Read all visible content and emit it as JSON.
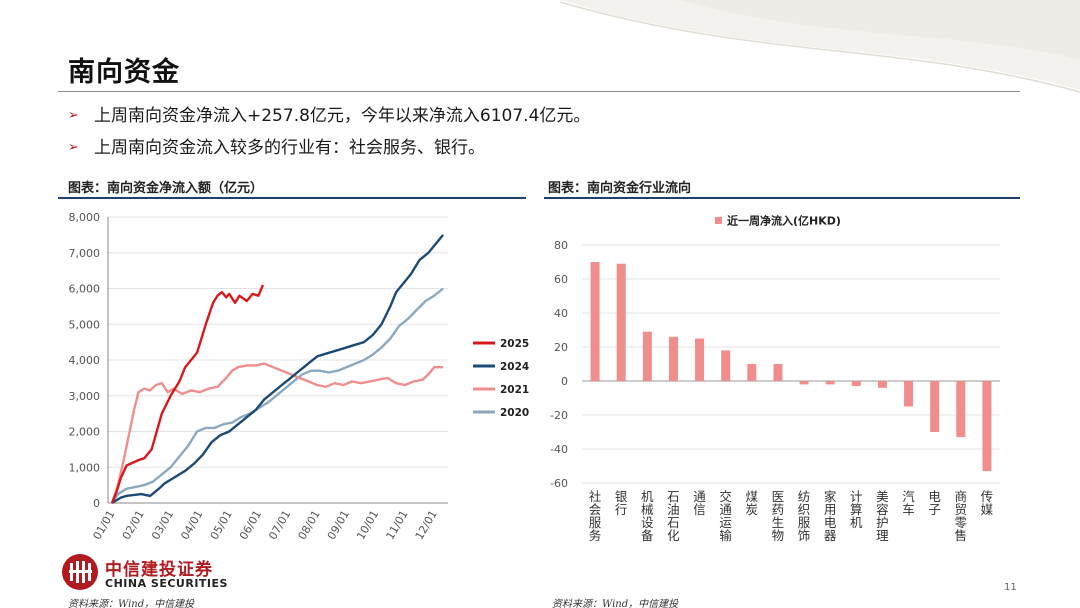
{
  "slide": {
    "title": "南向资金",
    "bullets": [
      "上周南向资金净流入+257.8亿元，今年以来净流入6107.4亿元。",
      "上周南向资金流入较多的行业有：社会服务、银行。"
    ],
    "page_number": "11",
    "logo_cn": "中信建投证券",
    "logo_en": "CHINA SECURITIES",
    "accent_color": "#b11a1f",
    "rule_color": "#1f3f6e"
  },
  "left": {
    "caption": "图表：南向资金净流入额（亿元）",
    "source": "资料来源：Wind，中信建投"
  },
  "right": {
    "caption": "图表：南向资金行业流向",
    "source": "资料来源：Wind，中信建投"
  },
  "chart_data": [
    {
      "type": "line",
      "title": "",
      "xlabel": "",
      "ylabel": "",
      "ylim": [
        0,
        8000
      ],
      "yticks": [
        "0",
        "1,000",
        "2,000",
        "3,000",
        "4,000",
        "5,000",
        "6,000",
        "7,000",
        "8,000"
      ],
      "xticks": [
        "01/01",
        "02/01",
        "03/01",
        "04/01",
        "05/01",
        "06/01",
        "07/01",
        "08/01",
        "09/01",
        "10/01",
        "11/01",
        "12/01"
      ],
      "grid": true,
      "legend_position": "right",
      "series": [
        {
          "name": "2025",
          "color": "#d7191f",
          "points": [
            [
              0,
              0
            ],
            [
              0.15,
              300
            ],
            [
              0.3,
              700
            ],
            [
              0.5,
              1050
            ],
            [
              0.9,
              1200
            ],
            [
              1.1,
              1250
            ],
            [
              1.35,
              1500
            ],
            [
              1.7,
              2500
            ],
            [
              2.0,
              3000
            ],
            [
              2.3,
              3400
            ],
            [
              2.5,
              3800
            ],
            [
              2.9,
              4200
            ],
            [
              3.2,
              5000
            ],
            [
              3.45,
              5600
            ],
            [
              3.6,
              5800
            ],
            [
              3.75,
              5900
            ],
            [
              3.9,
              5750
            ],
            [
              4.0,
              5850
            ],
            [
              4.2,
              5600
            ],
            [
              4.35,
              5800
            ],
            [
              4.6,
              5650
            ],
            [
              4.8,
              5850
            ],
            [
              5.0,
              5800
            ],
            [
              5.15,
              6100
            ]
          ]
        },
        {
          "name": "2024",
          "color": "#1b4a75",
          "points": [
            [
              0,
              0
            ],
            [
              0.3,
              150
            ],
            [
              0.5,
              200
            ],
            [
              1.0,
              250
            ],
            [
              1.3,
              200
            ],
            [
              1.6,
              400
            ],
            [
              1.8,
              550
            ],
            [
              2.1,
              700
            ],
            [
              2.5,
              900
            ],
            [
              2.8,
              1100
            ],
            [
              3.1,
              1350
            ],
            [
              3.4,
              1700
            ],
            [
              3.7,
              1900
            ],
            [
              4.0,
              2000
            ],
            [
              4.3,
              2200
            ],
            [
              4.6,
              2400
            ],
            [
              4.9,
              2600
            ],
            [
              5.2,
              2900
            ],
            [
              5.5,
              3100
            ],
            [
              5.8,
              3300
            ],
            [
              6.1,
              3500
            ],
            [
              6.4,
              3700
            ],
            [
              6.7,
              3900
            ],
            [
              7.0,
              4100
            ],
            [
              7.4,
              4200
            ],
            [
              7.8,
              4300
            ],
            [
              8.2,
              4400
            ],
            [
              8.6,
              4500
            ],
            [
              8.9,
              4700
            ],
            [
              9.2,
              5000
            ],
            [
              9.5,
              5500
            ],
            [
              9.7,
              5900
            ],
            [
              9.9,
              6100
            ],
            [
              10.2,
              6400
            ],
            [
              10.5,
              6800
            ],
            [
              10.8,
              7000
            ],
            [
              11.0,
              7200
            ],
            [
              11.3,
              7500
            ]
          ]
        },
        {
          "name": "2021",
          "color": "#f08e8e",
          "points": [
            [
              0,
              0
            ],
            [
              0.2,
              500
            ],
            [
              0.4,
              1200
            ],
            [
              0.6,
              2000
            ],
            [
              0.75,
              2600
            ],
            [
              0.9,
              3100
            ],
            [
              1.1,
              3200
            ],
            [
              1.3,
              3150
            ],
            [
              1.5,
              3300
            ],
            [
              1.7,
              3350
            ],
            [
              1.9,
              3100
            ],
            [
              2.1,
              3200
            ],
            [
              2.4,
              3050
            ],
            [
              2.7,
              3150
            ],
            [
              3.0,
              3100
            ],
            [
              3.3,
              3200
            ],
            [
              3.6,
              3250
            ],
            [
              3.9,
              3500
            ],
            [
              4.1,
              3700
            ],
            [
              4.3,
              3800
            ],
            [
              4.6,
              3850
            ],
            [
              4.9,
              3850
            ],
            [
              5.2,
              3900
            ],
            [
              5.5,
              3800
            ],
            [
              5.8,
              3700
            ],
            [
              6.1,
              3600
            ],
            [
              6.4,
              3500
            ],
            [
              6.7,
              3400
            ],
            [
              7.0,
              3300
            ],
            [
              7.3,
              3250
            ],
            [
              7.6,
              3350
            ],
            [
              7.9,
              3300
            ],
            [
              8.2,
              3400
            ],
            [
              8.5,
              3350
            ],
            [
              8.8,
              3400
            ],
            [
              9.1,
              3450
            ],
            [
              9.4,
              3500
            ],
            [
              9.7,
              3350
            ],
            [
              10.0,
              3300
            ],
            [
              10.3,
              3400
            ],
            [
              10.6,
              3450
            ],
            [
              10.8,
              3600
            ],
            [
              11.0,
              3800
            ],
            [
              11.3,
              3800
            ]
          ]
        },
        {
          "name": "2020",
          "color": "#8aa8c0",
          "points": [
            [
              0,
              0
            ],
            [
              0.2,
              250
            ],
            [
              0.5,
              400
            ],
            [
              0.8,
              450
            ],
            [
              1.1,
              500
            ],
            [
              1.4,
              600
            ],
            [
              1.7,
              800
            ],
            [
              2.0,
              1000
            ],
            [
              2.3,
              1300
            ],
            [
              2.6,
              1600
            ],
            [
              2.9,
              2000
            ],
            [
              3.2,
              2100
            ],
            [
              3.5,
              2100
            ],
            [
              3.8,
              2200
            ],
            [
              4.1,
              2250
            ],
            [
              4.4,
              2400
            ],
            [
              4.7,
              2500
            ],
            [
              5.0,
              2650
            ],
            [
              5.3,
              2800
            ],
            [
              5.6,
              3000
            ],
            [
              5.9,
              3200
            ],
            [
              6.2,
              3400
            ],
            [
              6.5,
              3600
            ],
            [
              6.8,
              3700
            ],
            [
              7.1,
              3700
            ],
            [
              7.4,
              3650
            ],
            [
              7.7,
              3700
            ],
            [
              8.0,
              3800
            ],
            [
              8.3,
              3900
            ],
            [
              8.6,
              4000
            ],
            [
              8.9,
              4150
            ],
            [
              9.2,
              4350
            ],
            [
              9.5,
              4600
            ],
            [
              9.8,
              4950
            ],
            [
              10.1,
              5150
            ],
            [
              10.4,
              5400
            ],
            [
              10.7,
              5650
            ],
            [
              11.0,
              5800
            ],
            [
              11.3,
              6000
            ]
          ]
        }
      ]
    },
    {
      "type": "bar",
      "title": "",
      "xlabel": "",
      "ylabel": "",
      "ylim": [
        -60,
        80
      ],
      "yticks": [
        "-60",
        "-40",
        "-20",
        "0",
        "20",
        "40",
        "60",
        "80"
      ],
      "grid": true,
      "legend_position": "top",
      "bar_color": "#f08e8e",
      "categories": [
        "社会服务",
        "银行",
        "机械设备",
        "石油石化",
        "通信",
        "交通运输",
        "煤炭",
        "医药生物",
        "纺织服饰",
        "家用电器",
        "计算机",
        "美容护理",
        "汽车",
        "电子",
        "商贸零售",
        "传媒"
      ],
      "series": [
        {
          "name": "近一周净流入(亿HKD)",
          "values": [
            70,
            69,
            29,
            26,
            25,
            18,
            10,
            10,
            -2,
            -2,
            -3,
            -4,
            -15,
            -30,
            -33,
            -53
          ]
        }
      ]
    }
  ]
}
